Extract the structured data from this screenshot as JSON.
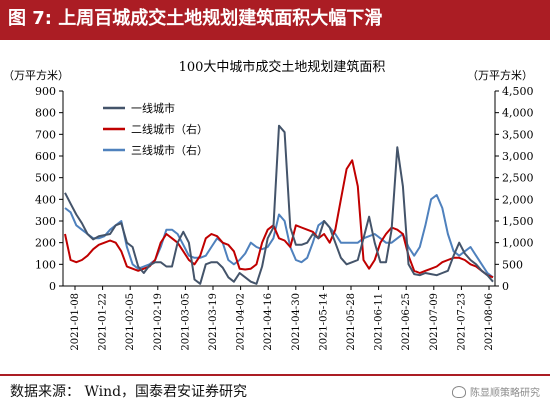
{
  "figure_title": "图 7:  上周百城成交土地规划建筑面积大幅下滑",
  "source_text": "数据来源： Wind，国泰君安证券研究",
  "watermark_text": "陈显顺策略研究",
  "colors": {
    "brand": "#ab1d24",
    "tier1": "#44546a",
    "tier2": "#c00000",
    "tier3": "#4f81bd"
  },
  "chart_data": {
    "type": "line",
    "title": "100大中城市成交土地规划建筑面积",
    "ylabel_left": "（万平方米）",
    "ylabel_right": "（万平方米）",
    "ylim_left": [
      0,
      900
    ],
    "ylim_right": [
      0,
      4500
    ],
    "yticks_left": [
      "0",
      "100",
      "200",
      "300",
      "400",
      "500",
      "600",
      "700",
      "800",
      "900"
    ],
    "yticks_right": [
      "0",
      "500",
      "1,000",
      "1,500",
      "2,000",
      "2,500",
      "3,000",
      "3,500",
      "4,000",
      "4,500"
    ],
    "xtick_labels": [
      "2021-01-08",
      "2021-01-22",
      "2021-02-05",
      "2021-02-19",
      "2021-03-05",
      "2021-03-19",
      "2021-04-02",
      "2021-04-16",
      "2021-04-30",
      "2021-05-14",
      "2021-05-28",
      "2021-06-11",
      "2021-06-25",
      "2021-07-09",
      "2021-07-23",
      "2021-08-06"
    ],
    "legend_position": "top-left",
    "grid": false,
    "series": [
      {
        "name": "一线城市",
        "axis": "left",
        "values": [
          430,
          380,
          330,
          290,
          240,
          215,
          230,
          235,
          240,
          280,
          290,
          200,
          180,
          90,
          60,
          95,
          110,
          110,
          90,
          90,
          200,
          250,
          200,
          30,
          10,
          100,
          110,
          110,
          85,
          40,
          20,
          60,
          40,
          20,
          10,
          90,
          220,
          270,
          740,
          710,
          270,
          190,
          190,
          200,
          240,
          220,
          300,
          270,
          200,
          130,
          100,
          110,
          120,
          220,
          320,
          200,
          110,
          110,
          260,
          640,
          460,
          100,
          55,
          50,
          60,
          55,
          50,
          60,
          70,
          140,
          200,
          150,
          120,
          100,
          70,
          50,
          20
        ]
      },
      {
        "name": "二线城市（右）",
        "axis": "right",
        "values": [
          1200,
          600,
          550,
          600,
          700,
          850,
          950,
          1000,
          1050,
          1000,
          800,
          450,
          400,
          350,
          400,
          450,
          600,
          1000,
          1200,
          1100,
          1000,
          800,
          600,
          500,
          700,
          1100,
          1200,
          1150,
          1000,
          950,
          800,
          400,
          380,
          400,
          500,
          1000,
          1300,
          1400,
          1100,
          1050,
          900,
          1400,
          1350,
          1300,
          1250,
          1100,
          1200,
          1000,
          1300,
          2000,
          2700,
          2900,
          2300,
          600,
          400,
          600,
          1000,
          1200,
          1350,
          1300,
          1200,
          700,
          350,
          300,
          350,
          400,
          450,
          550,
          600,
          650,
          650,
          600,
          500,
          450,
          350,
          250,
          200
        ]
      },
      {
        "name": "三线城市（右）",
        "axis": "right",
        "values": [
          1800,
          1700,
          1400,
          1300,
          1200,
          1100,
          1100,
          1150,
          1300,
          1400,
          1500,
          900,
          500,
          400,
          450,
          500,
          600,
          900,
          1300,
          1300,
          1200,
          950,
          700,
          650,
          650,
          700,
          900,
          1100,
          1000,
          600,
          500,
          600,
          750,
          1000,
          900,
          850,
          900,
          1100,
          1650,
          1500,
          900,
          600,
          550,
          650,
          1000,
          1400,
          1500,
          1350,
          1200,
          1000,
          1000,
          1000,
          1000,
          1100,
          1150,
          1200,
          1100,
          1000,
          1000,
          1100,
          1200,
          900,
          700,
          900,
          1400,
          2000,
          2100,
          1800,
          1200,
          800,
          700,
          800,
          900,
          700,
          500,
          300,
          200
        ]
      }
    ]
  }
}
